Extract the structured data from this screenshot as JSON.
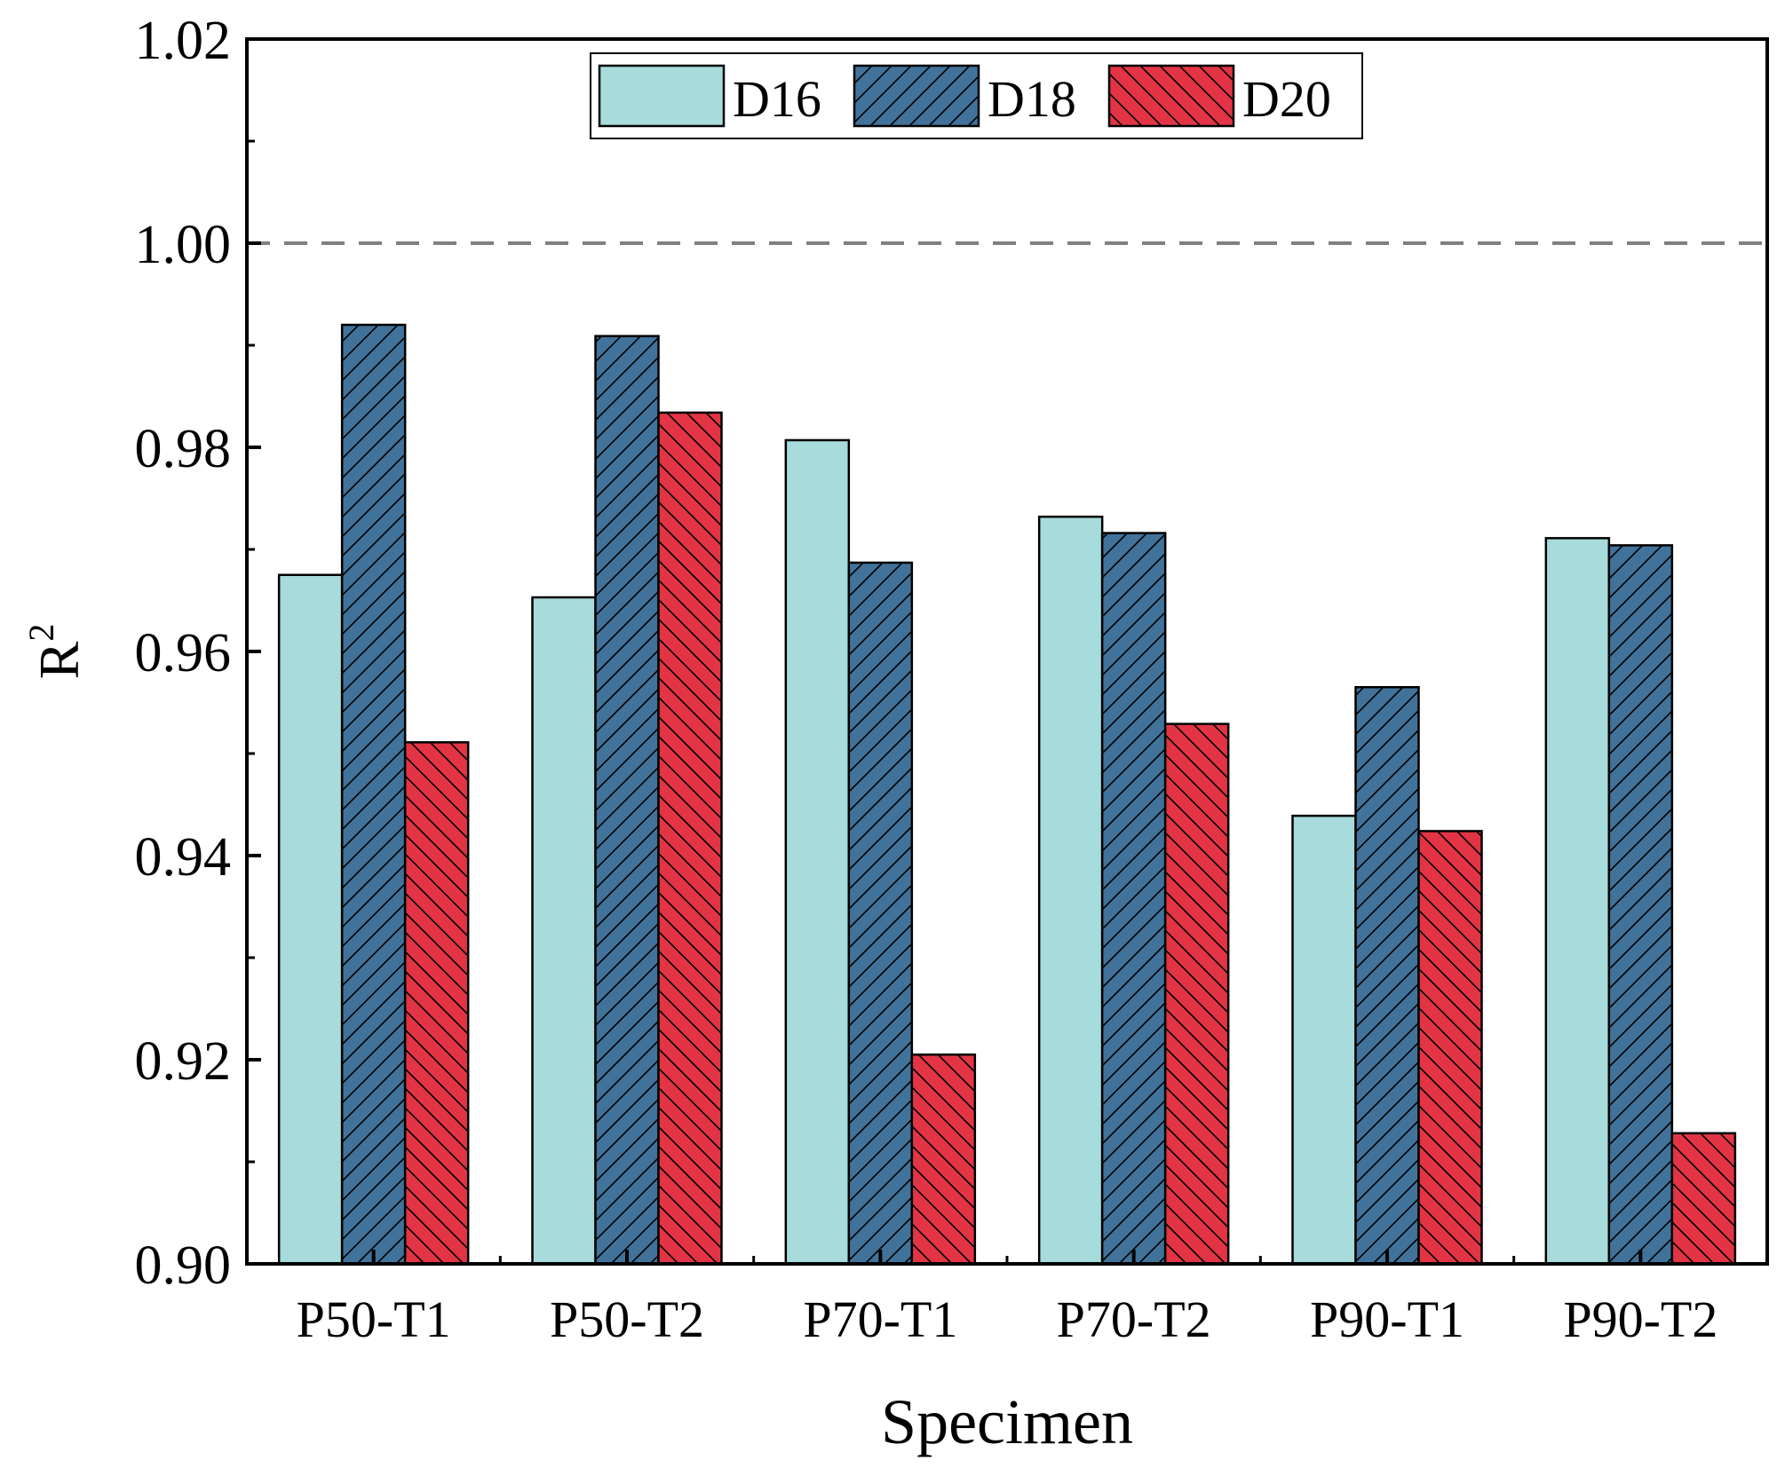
{
  "chart_data": {
    "type": "bar",
    "title": "",
    "xlabel": "Specimen",
    "ylabel": "R",
    "ylabel_superscript": "2",
    "categories": [
      "P50-T1",
      "P50-T2",
      "P70-T1",
      "P70-T2",
      "P90-T1",
      "P90-T2"
    ],
    "series": [
      {
        "name": "D16",
        "values": [
          0.9675,
          0.9653,
          0.9807,
          0.9732,
          0.9439,
          0.9711
        ],
        "color": "#a8dbdb",
        "pattern": "none"
      },
      {
        "name": "D18",
        "values": [
          0.992,
          0.9909,
          0.9687,
          0.9716,
          0.9565,
          0.9704
        ],
        "color": "#417299",
        "pattern": "diagonal-up"
      },
      {
        "name": "D20",
        "values": [
          0.9511,
          0.9834,
          0.9205,
          0.9529,
          0.9424,
          0.9128
        ],
        "color": "#e23445",
        "pattern": "diagonal-down"
      }
    ],
    "ylim": [
      0.9,
      1.02
    ],
    "yticks": [
      "0.90",
      "0.92",
      "0.94",
      "0.96",
      "0.98",
      "1.00",
      "1.02"
    ],
    "reference_line": {
      "y": 1.0,
      "style": "dashed",
      "color": "#808080"
    },
    "legend": {
      "position": "top-center",
      "entries": [
        "D16",
        "D18",
        "D20"
      ]
    },
    "grid": false
  }
}
